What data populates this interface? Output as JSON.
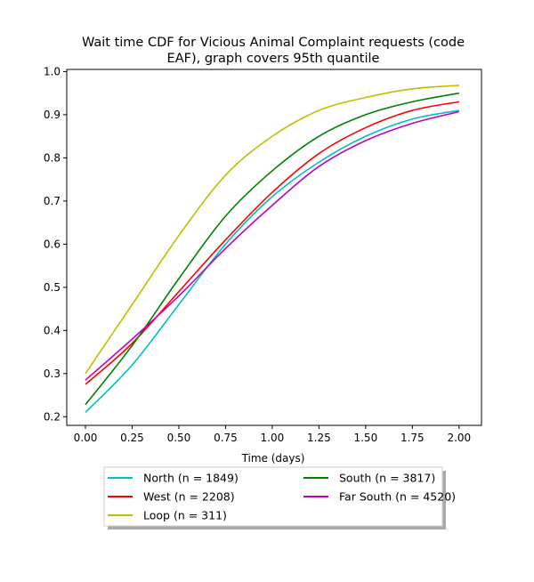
{
  "chart_data": {
    "type": "line",
    "title_line1": "Wait time CDF for Vicious Animal Complaint  requests (code",
    "title_line2": "EAF), graph covers 95th quantile",
    "xlabel": "Time (days)",
    "ylabel": "",
    "xlim": [
      -0.1,
      2.12
    ],
    "ylim": [
      0.18,
      1.005
    ],
    "x_ticks": [
      "0.00",
      "0.25",
      "0.50",
      "0.75",
      "1.00",
      "1.25",
      "1.50",
      "1.75",
      "2.00"
    ],
    "y_ticks": [
      "0.2",
      "0.3",
      "0.4",
      "0.5",
      "0.6",
      "0.7",
      "0.8",
      "0.9",
      "1.0"
    ],
    "x_tick_values": [
      0,
      0.25,
      0.5,
      0.75,
      1.0,
      1.25,
      1.5,
      1.75,
      2.0
    ],
    "y_tick_values": [
      0.2,
      0.3,
      0.4,
      0.5,
      0.6,
      0.7,
      0.8,
      0.9,
      1.0
    ],
    "grid": false,
    "legend_placement": "bottom-center",
    "x": [
      0,
      0.25,
      0.5,
      0.75,
      1.0,
      1.25,
      1.5,
      1.75,
      2.0
    ],
    "series": [
      {
        "name": "North (n = 1849)",
        "color": "#00bfbf",
        "values": [
          0.21,
          0.32,
          0.46,
          0.6,
          0.71,
          0.79,
          0.85,
          0.89,
          0.91
        ]
      },
      {
        "name": "West (n = 2208)",
        "color": "#ff0000",
        "values": [
          0.275,
          0.37,
          0.49,
          0.61,
          0.72,
          0.81,
          0.87,
          0.91,
          0.93
        ]
      },
      {
        "name": "Loop (n = 311)",
        "color": "#bfbf00",
        "values": [
          0.3,
          0.46,
          0.62,
          0.76,
          0.85,
          0.91,
          0.94,
          0.96,
          0.968
        ]
      },
      {
        "name": "South (n = 3817)",
        "color": "#008000",
        "values": [
          0.228,
          0.365,
          0.52,
          0.665,
          0.77,
          0.85,
          0.9,
          0.93,
          0.95
        ]
      },
      {
        "name": "Far South (n = 4520)",
        "color": "#bf00bf",
        "values": [
          0.285,
          0.38,
          0.48,
          0.59,
          0.69,
          0.78,
          0.84,
          0.88,
          0.907
        ]
      }
    ]
  }
}
